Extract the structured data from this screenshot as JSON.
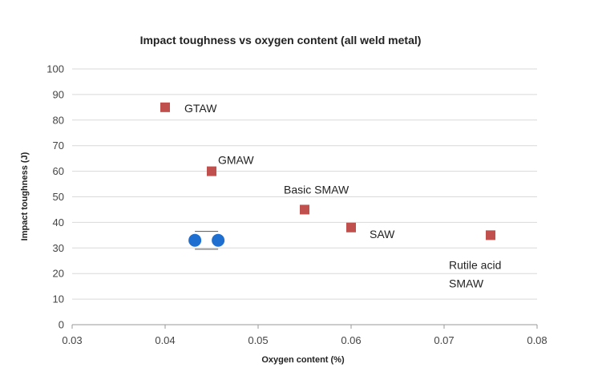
{
  "chart_data": {
    "type": "scatter",
    "title": "Impact toughness vs oxygen content (all weld metal)",
    "xlabel": "Oxygen content (%)",
    "ylabel": "Impact toughness (J)",
    "xlim": [
      0.03,
      0.08
    ],
    "ylim": [
      0,
      100
    ],
    "x_ticks": [
      "0.03",
      "0.04",
      "0.05",
      "0.06",
      "0.07",
      "0.08"
    ],
    "y_ticks": [
      "0",
      "10",
      "20",
      "30",
      "40",
      "50",
      "60",
      "70",
      "80",
      "90",
      "100"
    ],
    "grid": "horizontal",
    "points": [
      {
        "x": 0.04,
        "y": 85,
        "label": "GTAW"
      },
      {
        "x": 0.045,
        "y": 60,
        "label": "GMAW"
      },
      {
        "x": 0.055,
        "y": 45,
        "label": "Basic SMAW"
      },
      {
        "x": 0.06,
        "y": 38,
        "label": "SAW"
      },
      {
        "x": 0.075,
        "y": 35,
        "label": "Rutile acid SMAW"
      }
    ],
    "marker_color": "#c0504d",
    "overlay_circles": {
      "color": "#1f6fd1",
      "points": [
        {
          "x": 0.0432,
          "y": 33
        },
        {
          "x": 0.0457,
          "y": 33
        }
      ],
      "bar_y": [
        36.5,
        29.5
      ]
    }
  }
}
